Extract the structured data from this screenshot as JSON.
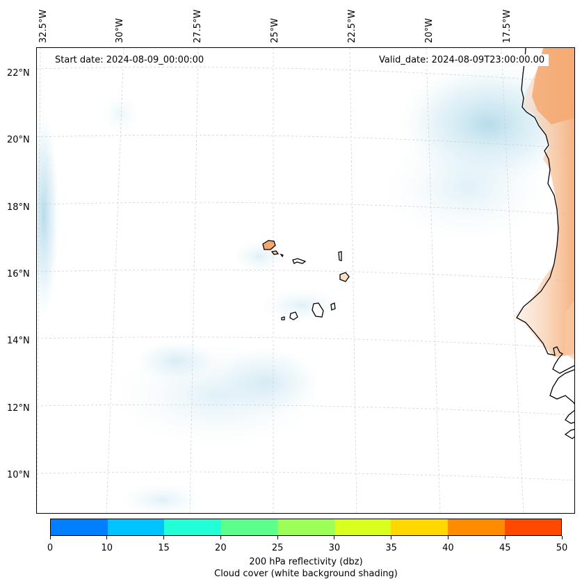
{
  "map": {
    "start_date": "Start date: 2024-08-09_00:00:00",
    "valid_date": "Valid_date: 2024-08-09T23:00:00.00",
    "longitude_labels": [
      "32.5°W",
      "30°W",
      "27.5°W",
      "25°W",
      "22.5°W",
      "20°W",
      "17.5°W"
    ],
    "latitude_labels": [
      "22°N",
      "20°N",
      "18°N",
      "16°N",
      "14°N",
      "12°N",
      "10°N"
    ],
    "land_color": "#f4a870",
    "cloud_color": "#a6d4e6"
  },
  "colorbar": {
    "ticks": [
      "0",
      "10",
      "15",
      "20",
      "25",
      "30",
      "35",
      "40",
      "45",
      "50"
    ],
    "colors": [
      "#0080ff",
      "#00c4ff",
      "#22ffd6",
      "#5cff8c",
      "#9cff55",
      "#d8ff1e",
      "#ffd800",
      "#ff8c00",
      "#ff4800"
    ],
    "label": "200 hPa reflectivity (dbz)",
    "sublabel": "Cloud cover (white background shading)"
  }
}
